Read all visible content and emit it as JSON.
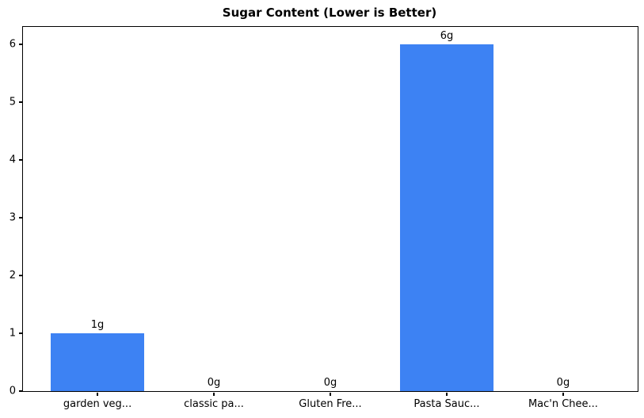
{
  "chart_data": {
    "type": "bar",
    "title": "Sugar Content (Lower is Better)",
    "categories": [
      "garden veg...",
      "classic pa...",
      "Gluten Fre...",
      "Pasta Sauc...",
      "Mac'n Chee..."
    ],
    "values": [
      1,
      0,
      0,
      6,
      0
    ],
    "bar_labels": [
      "1g",
      "0g",
      "0g",
      "6g",
      "0g"
    ],
    "xlabel": "",
    "ylabel": "",
    "yticks": [
      0,
      1,
      2,
      3,
      4,
      5,
      6
    ],
    "ylim": [
      0,
      6.3
    ],
    "xlim": [
      -0.64,
      4.64
    ],
    "bar_width_units": 0.8,
    "bar_color": "#3d82f3",
    "axis_color": "#000000",
    "text_color": "#000000",
    "background_color": "#ffffff",
    "grid": false,
    "legend": null
  }
}
